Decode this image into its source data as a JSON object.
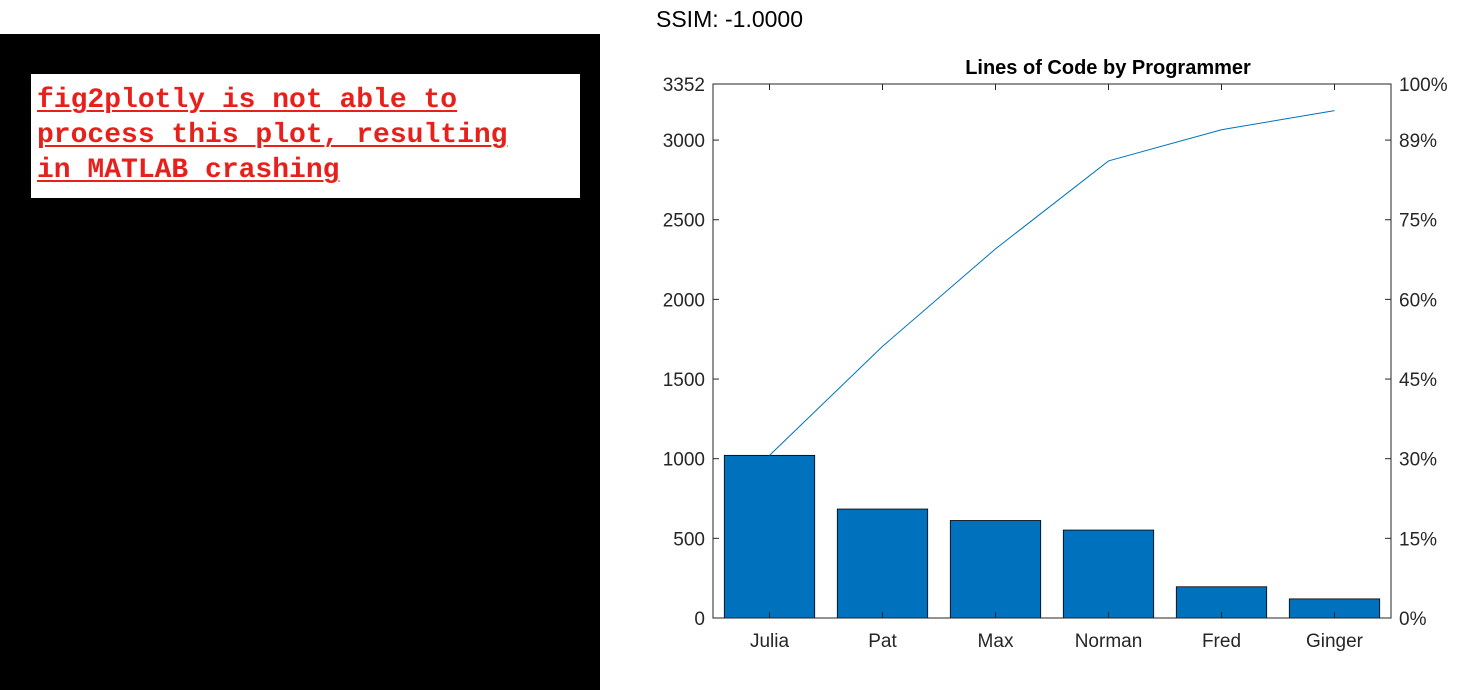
{
  "ssim_label": "SSIM: -1.0000",
  "error_message": {
    "lines": [
      "fig2plotly is not able to",
      "process this plot, resulting",
      "in MATLAB crashing"
    ],
    "color": "#e8201c"
  },
  "colors": {
    "bar": "#0072bd",
    "line": "#0072bd",
    "panel_background": "#000000"
  },
  "chart_data": {
    "type": "bar",
    "title": "Lines of Code by Programmer",
    "categories": [
      "Julia",
      "Pat",
      "Max",
      "Norman",
      "Fred",
      "Ginger"
    ],
    "values": [
      1021,
      684,
      612,
      552,
      196,
      120
    ],
    "cumulative_line": [
      1021,
      1705,
      2317,
      2869,
      3065,
      3185
    ],
    "ylim": [
      0,
      3352
    ],
    "yticks": [
      0,
      500,
      1000,
      1500,
      2000,
      2500,
      3000,
      3352
    ],
    "y2ticks": [
      "0%",
      "15%",
      "30%",
      "45%",
      "60%",
      "75%",
      "89%",
      "100%"
    ],
    "xlabel": "",
    "ylabel": "",
    "grid": false
  }
}
